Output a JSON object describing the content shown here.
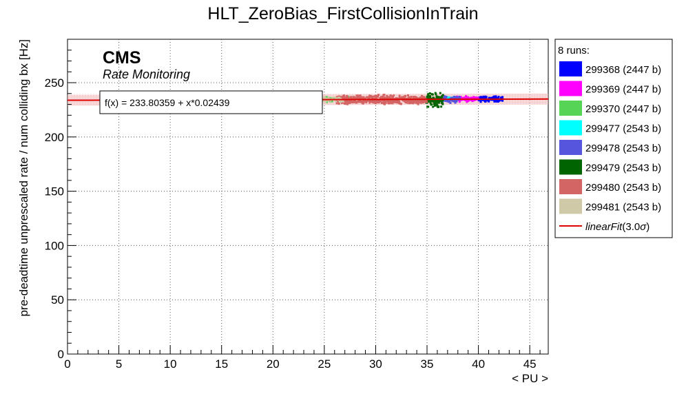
{
  "chart_data": {
    "type": "scatter",
    "title": "HLT_ZeroBias_FirstCollisionInTrain",
    "xlabel": "< PU >",
    "ylabel": "pre-deadtime unprescaled rate / num colliding bx [Hz]",
    "xlim": [
      0,
      46.8
    ],
    "ylim": [
      0,
      290
    ],
    "xticks": [
      0,
      5,
      10,
      15,
      20,
      25,
      30,
      35,
      40,
      45
    ],
    "yticks": [
      0,
      50,
      100,
      150,
      200,
      250
    ],
    "grid": true,
    "cms_label": "CMS",
    "cms_sublabel": "Rate Monitoring",
    "fit": {
      "label": "f(x) = 233.80359 + x*0.02439",
      "intercept": 233.80359,
      "slope": 0.02439,
      "band_halfwidth": 5,
      "color": "#dd0000"
    },
    "legend": {
      "placement": "right",
      "header": "8 runs:",
      "fit_entry": "linearFit",
      "fit_entry_suffix": "(3.0",
      "fit_entry_sigma": "σ",
      "fit_entry_close": ")"
    },
    "series": [
      {
        "name": "299368 (2447 b)",
        "color": "#0000ff",
        "x_range": [
          40.0,
          42.4
        ],
        "y_center": 234.9,
        "y_spread": 1.6,
        "n": 110
      },
      {
        "name": "299369 (2447 b)",
        "color": "#ff00ff",
        "x_range": [
          37.6,
          40.0
        ],
        "y_center": 235.0,
        "y_spread": 1.5,
        "n": 90
      },
      {
        "name": "299370 (2447 b)",
        "color": "#55d455",
        "x_range": [
          25.2,
          27.4
        ],
        "y_center": 234.7,
        "y_spread": 1.8,
        "n": 60
      },
      {
        "name": "299477 (2543 b)",
        "color": "#00ffff",
        "x_range": [
          36.6,
          37.6
        ],
        "y_center": 235.3,
        "y_spread": 1.2,
        "n": 25
      },
      {
        "name": "299478 (2543 b)",
        "color": "#5555dd",
        "x_range": [
          36.2,
          38.2
        ],
        "y_center": 234.6,
        "y_spread": 1.8,
        "n": 80
      },
      {
        "name": "299479 (2543 b)",
        "color": "#006400",
        "x_range": [
          34.8,
          36.6
        ],
        "y_center": 233.9,
        "y_spread": 4.0,
        "n": 110
      },
      {
        "name": "299480 (2543 b)",
        "color": "#d46565",
        "x_range": [
          26.2,
          35.0
        ],
        "y_center": 234.1,
        "y_spread": 2.6,
        "n": 520
      },
      {
        "name": "299481 (2543 b)",
        "color": "#cfc9a8",
        "x_range": [
          24.6,
          27.0
        ],
        "y_center": 234.4,
        "y_spread": 1.5,
        "n": 40
      }
    ]
  }
}
